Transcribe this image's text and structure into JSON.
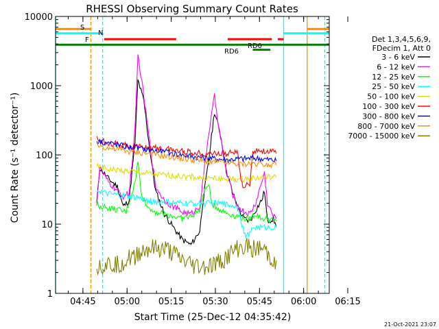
{
  "chart_data": {
    "type": "line",
    "title": "RHESSI Observing Summary Count Rates",
    "xlabel": "Start Time (25-Dec-12 04:35:42)",
    "ylabel": "Count Rate (s⁻¹ detector⁻¹)",
    "xlim_minutes": [
      0,
      93
    ],
    "ylim": [
      1,
      10000
    ],
    "yscale": "log",
    "x_ticks": [
      "04:45",
      "05:00",
      "05:15",
      "05:30",
      "05:45",
      "06:00",
      "06:15"
    ],
    "y_ticks": [
      "1",
      "10",
      "100",
      "1000",
      "10000"
    ],
    "legend_header": [
      "Det 1,3,4,5,6,9,",
      "FDecim 1, Att 0"
    ],
    "legend_position": "right",
    "footer": "21-Oct-2021 23:07",
    "series": [
      {
        "name": "3 - 6 keV",
        "color": "#000000",
        "points": [
          [
            14,
            20
          ],
          [
            15,
            65
          ],
          [
            18,
            45
          ],
          [
            21,
            35
          ],
          [
            23,
            18
          ],
          [
            25,
            22
          ],
          [
            27,
            150
          ],
          [
            28,
            1200
          ],
          [
            30,
            600
          ],
          [
            32,
            120
          ],
          [
            34,
            30
          ],
          [
            37,
            14
          ],
          [
            40,
            9
          ],
          [
            43,
            6
          ],
          [
            46,
            5
          ],
          [
            49,
            8
          ],
          [
            50,
            20
          ],
          [
            52,
            80
          ],
          [
            54,
            420
          ],
          [
            56,
            200
          ],
          [
            58,
            60
          ],
          [
            60,
            30
          ],
          [
            62,
            17
          ],
          [
            64,
            12
          ],
          [
            66,
            11
          ],
          [
            68,
            16
          ],
          [
            70,
            22
          ],
          [
            71,
            30
          ],
          [
            72,
            11
          ],
          [
            74,
            12
          ],
          [
            75,
            9
          ]
        ]
      },
      {
        "name": "6 - 12 keV",
        "color": "#ff00ff",
        "points": [
          [
            14,
            20
          ],
          [
            15,
            65
          ],
          [
            18,
            40
          ],
          [
            21,
            30
          ],
          [
            23,
            25
          ],
          [
            25,
            28
          ],
          [
            27,
            220
          ],
          [
            28,
            2800
          ],
          [
            30,
            700
          ],
          [
            32,
            150
          ],
          [
            34,
            35
          ],
          [
            37,
            22
          ],
          [
            40,
            18
          ],
          [
            43,
            15
          ],
          [
            46,
            14
          ],
          [
            49,
            18
          ],
          [
            50,
            40
          ],
          [
            52,
            200
          ],
          [
            54,
            700
          ],
          [
            56,
            180
          ],
          [
            58,
            60
          ],
          [
            60,
            28
          ],
          [
            62,
            18
          ],
          [
            64,
            15
          ],
          [
            66,
            14
          ],
          [
            68,
            20
          ],
          [
            70,
            40
          ],
          [
            71,
            55
          ],
          [
            72,
            20
          ],
          [
            74,
            13
          ],
          [
            75,
            12
          ]
        ]
      },
      {
        "name": "12 - 25 keV",
        "color": "#00ff00",
        "points": [
          [
            14,
            19
          ],
          [
            18,
            17
          ],
          [
            21,
            16
          ],
          [
            24,
            15
          ],
          [
            27,
            40
          ],
          [
            28,
            80
          ],
          [
            29,
            30
          ],
          [
            31,
            18
          ],
          [
            34,
            15
          ],
          [
            37,
            14
          ],
          [
            40,
            13
          ],
          [
            43,
            12
          ],
          [
            46,
            13
          ],
          [
            49,
            16
          ],
          [
            50,
            25
          ],
          [
            52,
            40
          ],
          [
            53,
            20
          ],
          [
            56,
            16
          ],
          [
            59,
            14
          ],
          [
            62,
            13
          ],
          [
            64,
            12
          ],
          [
            66,
            12
          ],
          [
            68,
            14
          ],
          [
            70,
            12
          ],
          [
            72,
            12
          ],
          [
            75,
            11
          ]
        ]
      },
      {
        "name": "25 - 50 keV",
        "color": "#00ffff",
        "points": [
          [
            14,
            31
          ],
          [
            18,
            27
          ],
          [
            22,
            26
          ],
          [
            25,
            25
          ],
          [
            28,
            24
          ],
          [
            31,
            22
          ],
          [
            34,
            21
          ],
          [
            37,
            21
          ],
          [
            40,
            20
          ],
          [
            43,
            20
          ],
          [
            46,
            20
          ],
          [
            49,
            20
          ],
          [
            52,
            20
          ],
          [
            56,
            20
          ],
          [
            59,
            19
          ],
          [
            62,
            18
          ],
          [
            63,
            12
          ],
          [
            64,
            7
          ],
          [
            66,
            7
          ],
          [
            67,
            9
          ],
          [
            70,
            9
          ],
          [
            73,
            9
          ],
          [
            75,
            9
          ]
        ]
      },
      {
        "name": "50 - 100 keV",
        "color": "#dddd00",
        "points": [
          [
            14,
            68
          ],
          [
            18,
            62
          ],
          [
            22,
            60
          ],
          [
            25,
            58
          ],
          [
            28,
            56
          ],
          [
            31,
            54
          ],
          [
            34,
            52
          ],
          [
            37,
            51
          ],
          [
            40,
            50
          ],
          [
            43,
            49
          ],
          [
            46,
            48
          ],
          [
            49,
            47
          ],
          [
            52,
            46
          ],
          [
            56,
            45
          ],
          [
            59,
            45
          ],
          [
            62,
            44
          ],
          [
            64,
            45
          ],
          [
            67,
            46
          ],
          [
            70,
            47
          ],
          [
            73,
            48
          ],
          [
            75,
            47
          ]
        ]
      },
      {
        "name": "100 - 300 keV",
        "color": "#ff0000",
        "points": [
          [
            14,
            170
          ],
          [
            18,
            150
          ],
          [
            22,
            140
          ],
          [
            25,
            135
          ],
          [
            28,
            132
          ],
          [
            31,
            128
          ],
          [
            34,
            125
          ],
          [
            37,
            122
          ],
          [
            40,
            118
          ],
          [
            43,
            114
          ],
          [
            46,
            110
          ],
          [
            49,
            105
          ],
          [
            52,
            105
          ],
          [
            56,
            105
          ],
          [
            59,
            106
          ],
          [
            62,
            108
          ],
          [
            63,
            40
          ],
          [
            64,
            35
          ],
          [
            66,
            38
          ],
          [
            67,
            115
          ],
          [
            70,
            115
          ],
          [
            73,
            112
          ],
          [
            75,
            105
          ]
        ]
      },
      {
        "name": "300 - 800 keV",
        "color": "#0000ff",
        "points": [
          [
            14,
            160
          ],
          [
            18,
            150
          ],
          [
            22,
            138
          ],
          [
            25,
            130
          ],
          [
            28,
            125
          ],
          [
            31,
            120
          ],
          [
            34,
            115
          ],
          [
            37,
            110
          ],
          [
            40,
            105
          ],
          [
            43,
            100
          ],
          [
            46,
            96
          ],
          [
            49,
            92
          ],
          [
            52,
            90
          ],
          [
            56,
            87
          ],
          [
            59,
            85
          ],
          [
            62,
            88
          ],
          [
            64,
            88
          ],
          [
            67,
            90
          ],
          [
            70,
            88
          ],
          [
            73,
            85
          ],
          [
            75,
            82
          ]
        ]
      },
      {
        "name": "800 - 7000 keV",
        "color": "#ff8c00",
        "points": [
          [
            14,
            140
          ],
          [
            18,
            125
          ],
          [
            22,
            118
          ],
          [
            25,
            112
          ],
          [
            28,
            108
          ],
          [
            31,
            105
          ],
          [
            34,
            100
          ],
          [
            37,
            96
          ],
          [
            40,
            92
          ],
          [
            43,
            88
          ],
          [
            46,
            85
          ],
          [
            49,
            82
          ],
          [
            52,
            80
          ],
          [
            56,
            78
          ],
          [
            59,
            76
          ],
          [
            62,
            74
          ],
          [
            64,
            74
          ],
          [
            67,
            76
          ],
          [
            70,
            75
          ],
          [
            73,
            73
          ],
          [
            75,
            71
          ]
        ]
      },
      {
        "name": "7000 - 15000 keV",
        "color": "#808000",
        "points": [
          [
            14,
            2.5
          ],
          [
            17,
            2.6
          ],
          [
            20,
            2.6
          ],
          [
            23,
            2.8
          ],
          [
            26,
            3.3
          ],
          [
            29,
            4.0
          ],
          [
            32,
            4.4
          ],
          [
            35,
            4.3
          ],
          [
            38,
            4.2
          ],
          [
            41,
            3.4
          ],
          [
            44,
            2.8
          ],
          [
            47,
            2.5
          ],
          [
            50,
            2.4
          ],
          [
            53,
            2.5
          ],
          [
            56,
            2.8
          ],
          [
            59,
            3.5
          ],
          [
            62,
            4.4
          ],
          [
            65,
            4.6
          ],
          [
            68,
            4.4
          ],
          [
            71,
            4.2
          ],
          [
            73,
            3.2
          ],
          [
            75,
            3.0
          ]
        ]
      }
    ],
    "vertical_lines": [
      {
        "x": 0,
        "color": "#00ffff",
        "style": "solid"
      },
      {
        "x": 12,
        "color": "#ff8c00",
        "style": "dashed"
      },
      {
        "x": 16,
        "color": "#00ffff",
        "style": "dashed"
      },
      {
        "x": 77.5,
        "color": "#00ffff",
        "style": "solid"
      },
      {
        "x": 85.5,
        "color": "#ff8c00",
        "style": "solid"
      },
      {
        "x": 91.5,
        "color": "#00ffff",
        "style": "dashed"
      }
    ],
    "flags": [
      {
        "label": "S",
        "color": "#ff8c00",
        "level": 6600,
        "segments": [
          [
            0,
            12
          ],
          [
            85.5,
            93
          ]
        ]
      },
      {
        "label": "N",
        "color": "#00ffff",
        "level": 5700,
        "segments": [
          [
            0,
            16
          ],
          [
            77.5,
            93
          ]
        ]
      },
      {
        "label": "F",
        "color": "#ff0000",
        "level": 4700,
        "segments": [
          [
            16.5,
            41
          ],
          [
            58.5,
            73.5
          ],
          [
            75.5,
            77.5
          ]
        ]
      },
      {
        "label": "RD0",
        "color": "#008000",
        "level": 3900,
        "segments": [
          [
            0,
            93
          ]
        ]
      },
      {
        "label": "RD6",
        "color": "#008000",
        "level": 3300,
        "segments": [
          [
            67,
            73
          ]
        ]
      }
    ]
  }
}
